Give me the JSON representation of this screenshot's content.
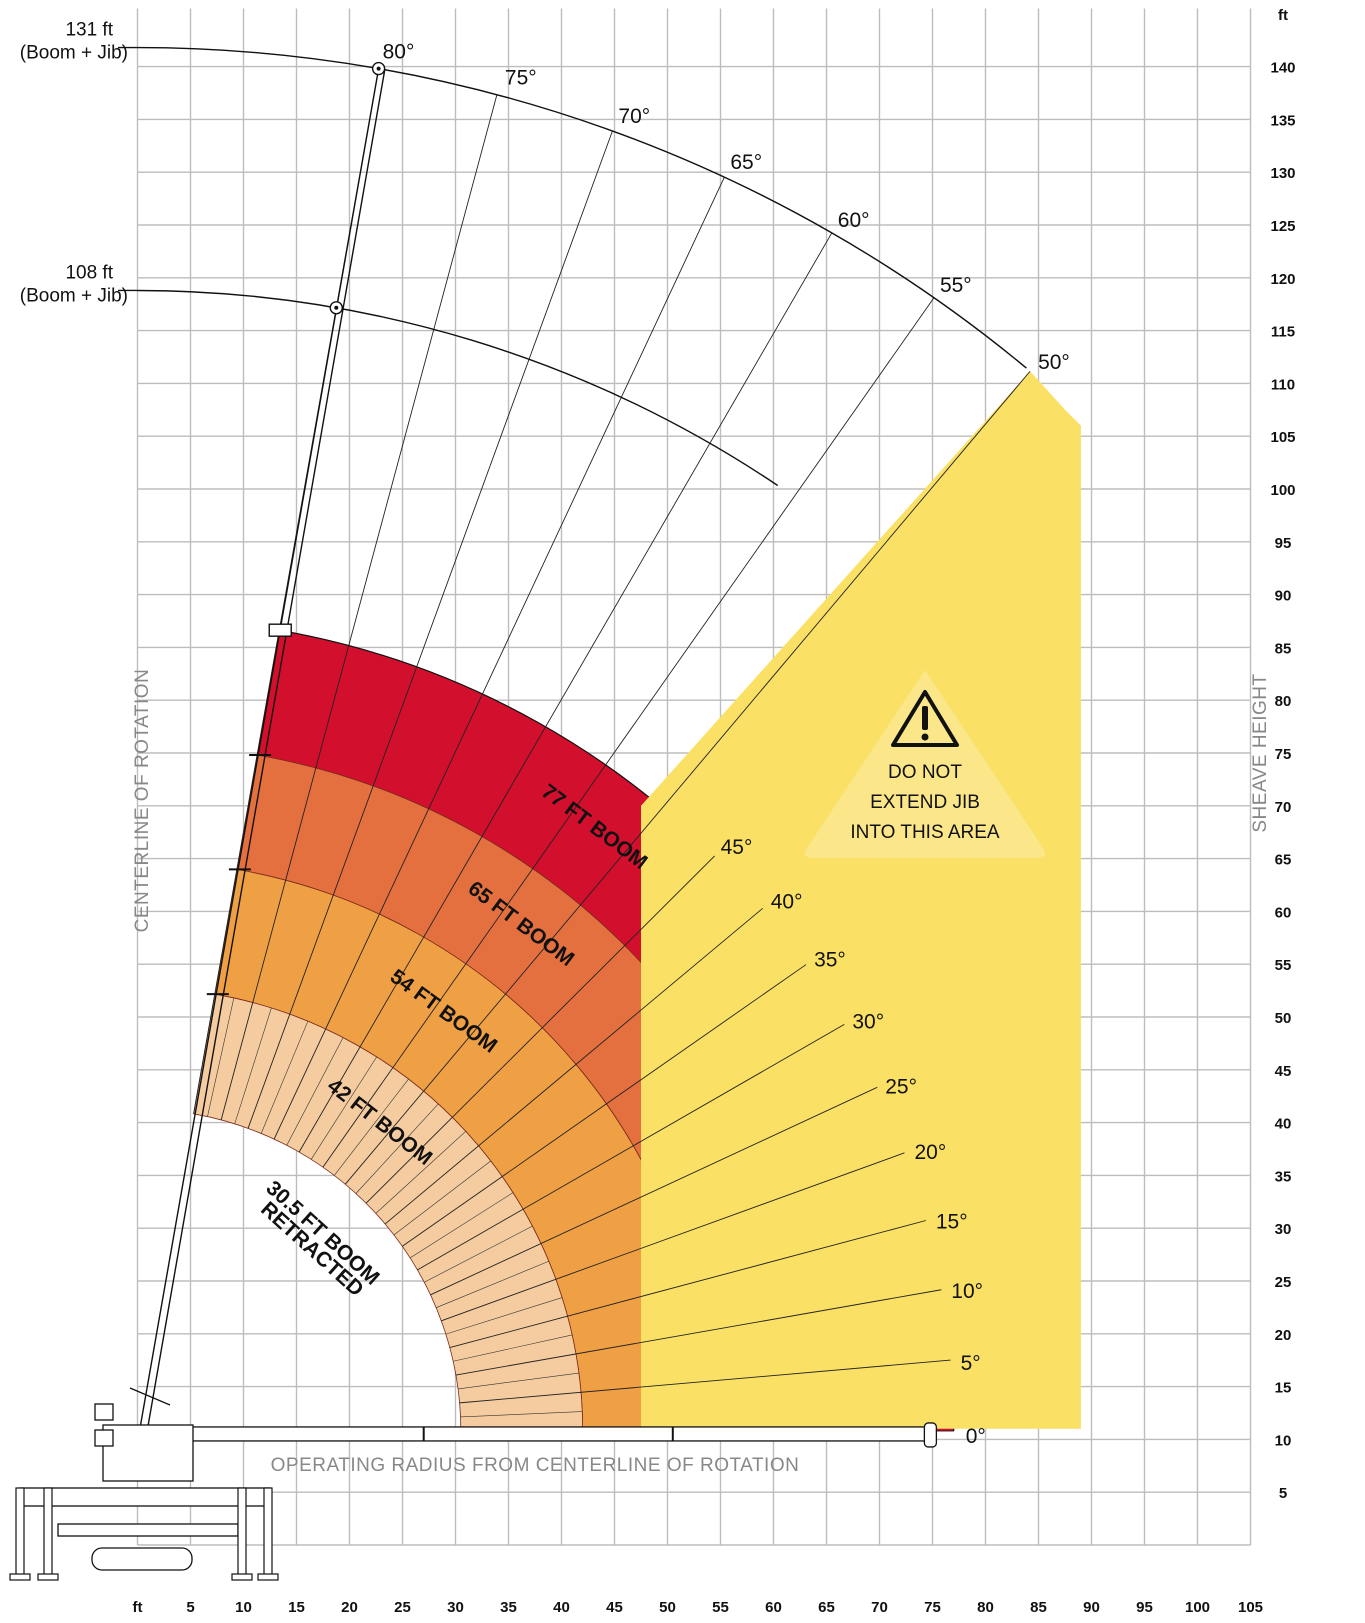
{
  "chart_data": {
    "type": "range-diagram",
    "x_axis": {
      "title": "OPERATING RADIUS FROM CENTERLINE OF ROTATION",
      "unit_label": "ft",
      "ticks": [
        5,
        10,
        15,
        20,
        25,
        30,
        35,
        40,
        45,
        50,
        55,
        60,
        65,
        70,
        75,
        80,
        85,
        90,
        95,
        100,
        105
      ],
      "range": [
        0,
        105
      ]
    },
    "y_axis": {
      "title": "SHEAVE HEIGHT",
      "unit_label": "ft",
      "ticks": [
        5,
        10,
        15,
        20,
        25,
        30,
        35,
        40,
        45,
        50,
        55,
        60,
        65,
        70,
        75,
        80,
        85,
        90,
        95,
        100,
        105,
        110,
        115,
        120,
        125,
        130,
        135,
        140
      ],
      "range": [
        0,
        145
      ]
    },
    "centerline_label": "CENTERLINE OF ROTATION",
    "pivot": {
      "x": 0,
      "y": 10.8
    },
    "zones": [
      {
        "label": "30.5 FT BOOM RETRACTED",
        "radius_ft": 30.5,
        "color": "#ffffff"
      },
      {
        "label": "42 FT BOOM",
        "radius_ft": 42,
        "color": "#f5cca0"
      },
      {
        "label": "54 FT BOOM",
        "radius_ft": 54,
        "color": "#f0a044"
      },
      {
        "label": "65 FT BOOM",
        "radius_ft": 65,
        "color": "#e47040"
      },
      {
        "label": "77 FT BOOM",
        "radius_ft": 77,
        "color": "#d30f2e"
      }
    ],
    "jib_arcs": [
      {
        "label": "131 ft",
        "sublabel": "(Boom + Jib)",
        "radius_ft": 131
      },
      {
        "label": "108 ft",
        "sublabel": "(Boom + Jib)",
        "radius_ft": 108
      }
    ],
    "angles": [
      {
        "deg": 80,
        "label": "80°"
      },
      {
        "deg": 75,
        "label": "75°"
      },
      {
        "deg": 70,
        "label": "70°"
      },
      {
        "deg": 65,
        "label": "65°"
      },
      {
        "deg": 60,
        "label": "60°"
      },
      {
        "deg": 55,
        "label": "55°"
      },
      {
        "deg": 50,
        "label": "50°"
      },
      {
        "deg": 45,
        "label": "45°"
      },
      {
        "deg": 40,
        "label": "40°"
      },
      {
        "deg": 35,
        "label": "35°"
      },
      {
        "deg": 30,
        "label": "30°"
      },
      {
        "deg": 25,
        "label": "25°"
      },
      {
        "deg": 20,
        "label": "20°"
      },
      {
        "deg": 15,
        "label": "15°"
      },
      {
        "deg": 10,
        "label": "10°"
      },
      {
        "deg": 5,
        "label": "5°"
      },
      {
        "deg": 0,
        "label": "0°"
      }
    ],
    "warning": {
      "lines": [
        "DO NOT",
        "EXTEND JIB",
        "INTO THIS AREA"
      ],
      "zone_color": "#fae064"
    }
  }
}
